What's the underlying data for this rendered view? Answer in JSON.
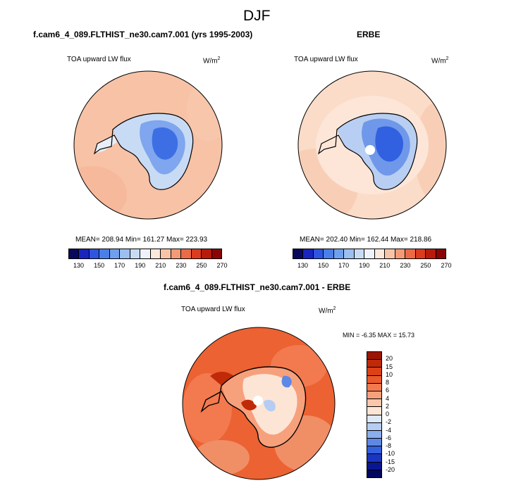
{
  "page_title": "DJF",
  "panels": {
    "model": {
      "header": "f.cam6_4_089.FLTHIST_ne30.cam7.001 (yrs 1995-2003)",
      "variable": "TOA upward LW flux",
      "units": "W/m",
      "units_exp": "2",
      "stats": "MEAN= 208.94  Min= 161.27  Max= 223.93"
    },
    "obs": {
      "header": "ERBE",
      "variable": "TOA upward LW flux",
      "units": "W/m",
      "units_exp": "2",
      "stats": "MEAN= 202.40  Min= 162.44  Max= 218.86"
    },
    "diff": {
      "header": "f.cam6_4_089.FLTHIST_ne30.cam7.001 - ERBE",
      "variable": "TOA upward LW flux",
      "units": "W/m",
      "units_exp": "2",
      "stats": "MIN =  -6.35 MAX =  15.73"
    }
  },
  "chart_data": [
    {
      "type": "heatmap",
      "title": "f.cam6_4_089.FLTHIST_ne30.cam7.001 (yrs 1995-2003)",
      "subtitle": "TOA upward LW flux",
      "units": "W/m2",
      "projection": "south polar stereographic",
      "colorbar": {
        "orientation": "horizontal",
        "ticks": [
          "130",
          "150",
          "170",
          "190",
          "210",
          "230",
          "250",
          "270"
        ],
        "colors": [
          "#08085e",
          "#1a24c0",
          "#2e55e0",
          "#4a7fe8",
          "#6fa0ee",
          "#9cbff2",
          "#c8dbf5",
          "#eef3fb",
          "#fde8dc",
          "#f8c4a8",
          "#f49a76",
          "#ec6a45",
          "#dc3b1e",
          "#b81b0c",
          "#8a0505"
        ]
      },
      "mean": 208.94,
      "min": 161.27,
      "max": 223.93
    },
    {
      "type": "heatmap",
      "title": "ERBE",
      "subtitle": "TOA upward LW flux",
      "units": "W/m2",
      "projection": "south polar stereographic",
      "colorbar": {
        "orientation": "horizontal",
        "ticks": [
          "130",
          "150",
          "170",
          "190",
          "210",
          "230",
          "250",
          "270"
        ],
        "colors": [
          "#08085e",
          "#1a24c0",
          "#2e55e0",
          "#4a7fe8",
          "#6fa0ee",
          "#9cbff2",
          "#c8dbf5",
          "#eef3fb",
          "#fde8dc",
          "#f8c4a8",
          "#f49a76",
          "#ec6a45",
          "#dc3b1e",
          "#b81b0c",
          "#8a0505"
        ]
      },
      "mean": 202.4,
      "min": 162.44,
      "max": 218.86
    },
    {
      "type": "heatmap",
      "title": "f.cam6_4_089.FLTHIST_ne30.cam7.001 - ERBE",
      "subtitle": "TOA upward LW flux",
      "units": "W/m2",
      "projection": "south polar stereographic",
      "colorbar": {
        "orientation": "vertical",
        "ticks": [
          "20",
          "15",
          "10",
          "8",
          "6",
          "4",
          "2",
          "0",
          "-2",
          "-4",
          "-6",
          "-8",
          "-10",
          "-15",
          "-20"
        ],
        "colors": [
          "#9c1502",
          "#c02a08",
          "#dc4216",
          "#ea5a2a",
          "#f27a4e",
          "#f7a07c",
          "#fbc6ac",
          "#fde5d6",
          "#dde8f8",
          "#b5cdf3",
          "#8aaeee",
          "#5d88e6",
          "#3360dc",
          "#1a35c0",
          "#0a1690",
          "#03065e"
        ]
      },
      "min": -6.35,
      "max": 15.73
    }
  ]
}
